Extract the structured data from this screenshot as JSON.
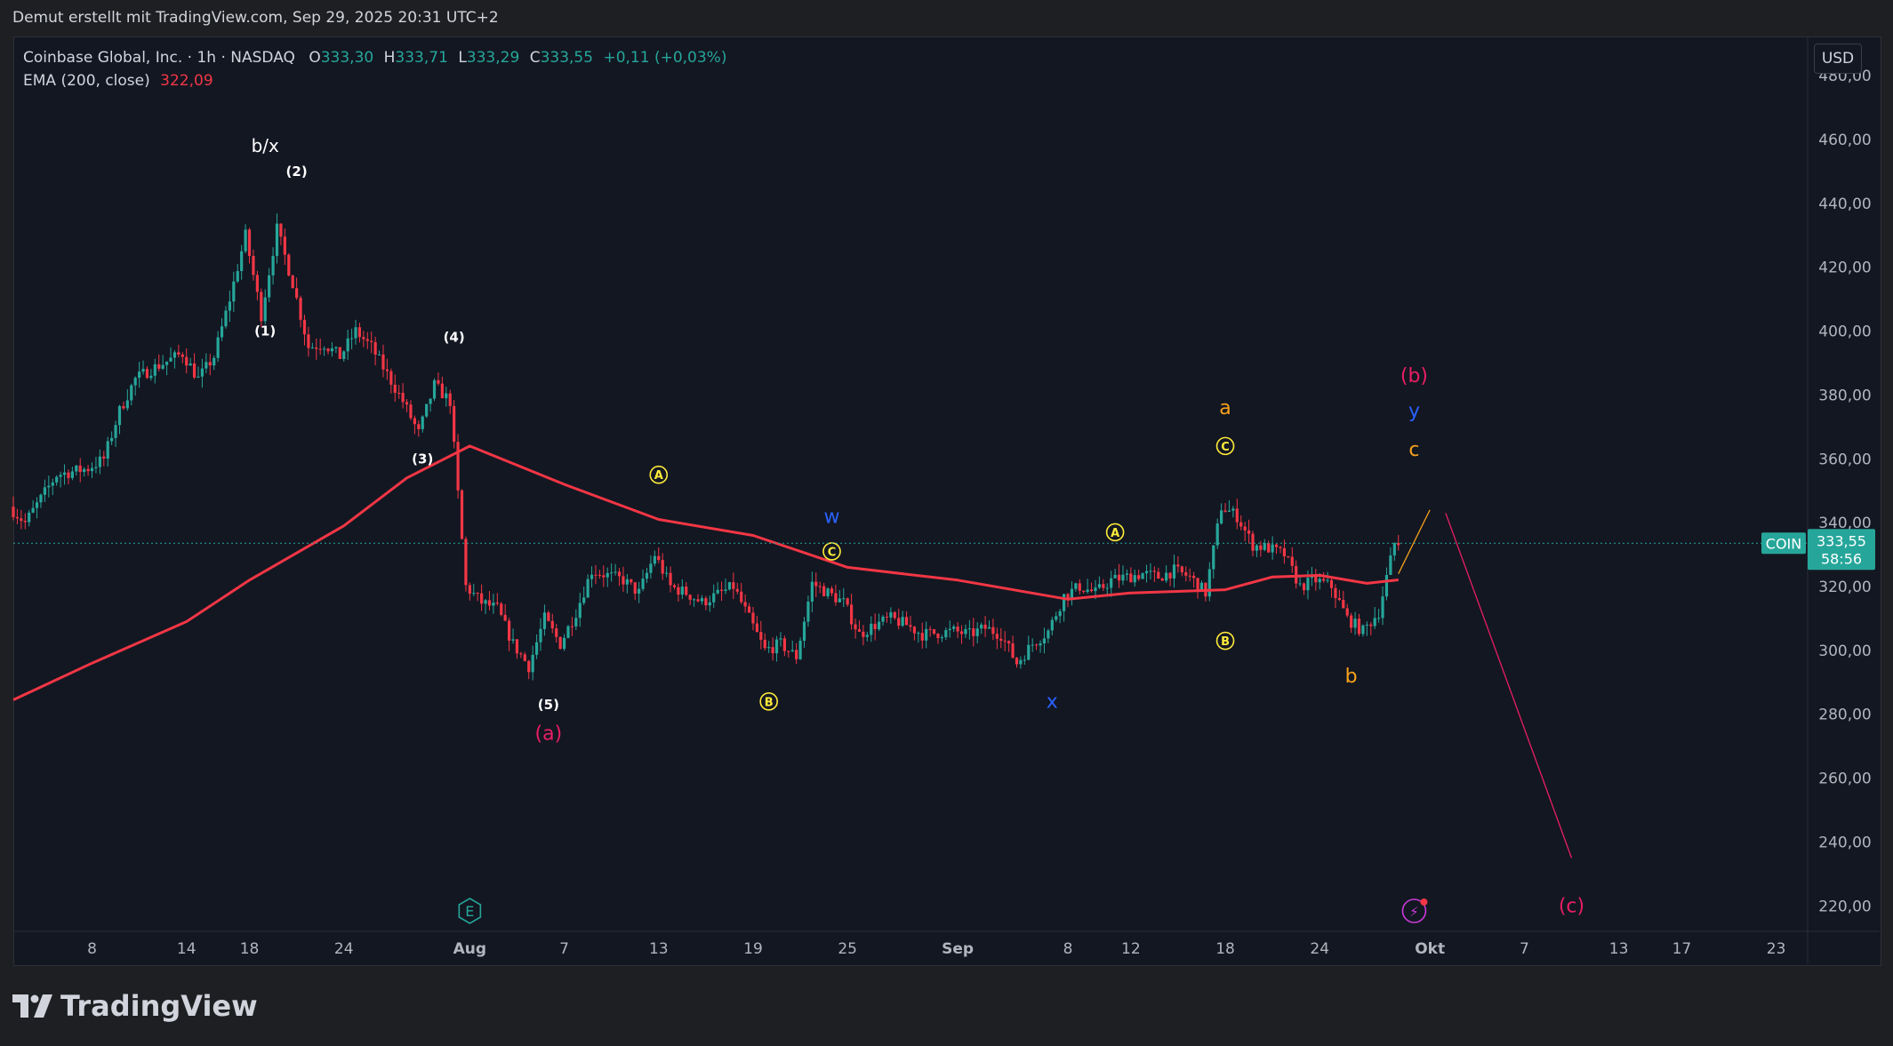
{
  "header": {
    "credit": "Demut erstellt mit TradingView.com, Sep 29, 2025 20:31 UTC+2"
  },
  "legend": {
    "symbol": "Coinbase Global, Inc. · 1h · NASDAQ",
    "o_label": "O",
    "o": "333,30",
    "h_label": "H",
    "h": "333,71",
    "l_label": "L",
    "l": "333,29",
    "c_label": "C",
    "c": "333,55",
    "change": "+0,11 (+0,03%)",
    "ema_label": "EMA (200, close)",
    "ema_value": "322,09"
  },
  "currency_button": "USD",
  "price_tag": {
    "ticker": "COIN",
    "price": "333,55",
    "countdown": "58:56"
  },
  "brand": {
    "name": "TradingView"
  },
  "colors": {
    "up": "#26a69a",
    "down": "#f23645",
    "ema": "#f23645",
    "bg": "#131722",
    "text": "#d1d4dc"
  },
  "chart_data": {
    "type": "candlestick",
    "symbol": "COIN",
    "interval": "1h",
    "ylim": [
      212,
      492
    ],
    "y_ticks": [
      220,
      240,
      260,
      280,
      300,
      320,
      340,
      360,
      380,
      400,
      420,
      440,
      460,
      480
    ],
    "y_tick_labels": [
      "220,00",
      "240,00",
      "260,00",
      "280,00",
      "300,00",
      "320,00",
      "340,00",
      "360,00",
      "380,00",
      "400,00",
      "420,00",
      "440,00",
      "460,00",
      "480,00"
    ],
    "x_range": [
      "2025-07-03",
      "2025-10-25"
    ],
    "x_ticks": [
      {
        "date": "2025-07-08",
        "label": "8"
      },
      {
        "date": "2025-07-14",
        "label": "14"
      },
      {
        "date": "2025-07-18",
        "label": "18"
      },
      {
        "date": "2025-07-24",
        "label": "24"
      },
      {
        "date": "2025-08-01",
        "label": "Aug"
      },
      {
        "date": "2025-08-07",
        "label": "7"
      },
      {
        "date": "2025-08-13",
        "label": "13"
      },
      {
        "date": "2025-08-19",
        "label": "19"
      },
      {
        "date": "2025-08-25",
        "label": "25"
      },
      {
        "date": "2025-09-01",
        "label": "Sep"
      },
      {
        "date": "2025-09-08",
        "label": "8"
      },
      {
        "date": "2025-09-12",
        "label": "12"
      },
      {
        "date": "2025-09-18",
        "label": "18"
      },
      {
        "date": "2025-09-24",
        "label": "24"
      },
      {
        "date": "2025-10-01",
        "label": "Okt"
      },
      {
        "date": "2025-10-07",
        "label": "7"
      },
      {
        "date": "2025-10-13",
        "label": "13"
      },
      {
        "date": "2025-10-17",
        "label": "17"
      },
      {
        "date": "2025-10-23",
        "label": "23"
      }
    ],
    "price_path": [
      [
        "2025-07-03",
        345
      ],
      [
        "2025-07-04",
        340
      ],
      [
        "2025-07-06",
        355
      ],
      [
        "2025-07-08",
        357
      ],
      [
        "2025-07-09",
        360
      ],
      [
        "2025-07-10",
        375
      ],
      [
        "2025-07-11",
        385
      ],
      [
        "2025-07-12",
        388
      ],
      [
        "2025-07-14",
        393
      ],
      [
        "2025-07-15",
        385
      ],
      [
        "2025-07-16",
        392
      ],
      [
        "2025-07-17",
        410
      ],
      [
        "2025-07-18",
        430
      ],
      [
        "2025-07-19",
        405
      ],
      [
        "2025-07-20",
        432
      ],
      [
        "2025-07-21",
        415
      ],
      [
        "2025-07-22",
        395
      ],
      [
        "2025-07-23",
        396
      ],
      [
        "2025-07-24",
        392
      ],
      [
        "2025-07-25",
        400
      ],
      [
        "2025-07-26",
        395
      ],
      [
        "2025-07-28",
        378
      ],
      [
        "2025-07-29",
        368
      ],
      [
        "2025-07-30",
        383
      ],
      [
        "2025-07-31",
        378
      ],
      [
        "2025-08-01",
        320
      ],
      [
        "2025-08-02",
        315
      ],
      [
        "2025-08-03",
        313
      ],
      [
        "2025-08-04",
        302
      ],
      [
        "2025-08-05",
        295
      ],
      [
        "2025-08-06",
        310
      ],
      [
        "2025-08-07",
        302
      ],
      [
        "2025-08-08",
        312
      ],
      [
        "2025-08-09",
        325
      ],
      [
        "2025-08-11",
        322
      ],
      [
        "2025-08-12",
        318
      ],
      [
        "2025-08-13",
        330
      ],
      [
        "2025-08-14",
        320
      ],
      [
        "2025-08-15",
        318
      ],
      [
        "2025-08-16",
        315
      ],
      [
        "2025-08-18",
        320
      ],
      [
        "2025-08-19",
        310
      ],
      [
        "2025-08-20",
        300
      ],
      [
        "2025-08-21",
        302
      ],
      [
        "2025-08-22",
        298
      ],
      [
        "2025-08-23",
        321
      ],
      [
        "2025-08-24",
        318
      ],
      [
        "2025-08-25",
        315
      ],
      [
        "2025-08-26",
        305
      ],
      [
        "2025-08-27",
        308
      ],
      [
        "2025-08-28",
        310
      ],
      [
        "2025-08-29",
        308
      ],
      [
        "2025-08-30",
        305
      ],
      [
        "2025-09-01",
        306
      ],
      [
        "2025-09-02",
        305
      ],
      [
        "2025-09-03",
        307
      ],
      [
        "2025-09-04",
        305
      ],
      [
        "2025-09-05",
        296
      ],
      [
        "2025-09-06",
        302
      ],
      [
        "2025-09-07",
        306
      ],
      [
        "2025-09-08",
        317
      ],
      [
        "2025-09-09",
        320
      ],
      [
        "2025-09-10",
        318
      ],
      [
        "2025-09-11",
        322
      ],
      [
        "2025-09-12",
        323
      ],
      [
        "2025-09-13",
        324
      ],
      [
        "2025-09-14",
        323
      ],
      [
        "2025-09-15",
        325
      ],
      [
        "2025-09-16",
        323
      ],
      [
        "2025-09-17",
        318
      ],
      [
        "2025-09-18",
        345
      ],
      [
        "2025-09-19",
        342
      ],
      [
        "2025-09-20",
        333
      ],
      [
        "2025-09-21",
        332
      ],
      [
        "2025-09-22",
        330
      ],
      [
        "2025-09-23",
        320
      ],
      [
        "2025-09-24",
        322
      ],
      [
        "2025-09-25",
        320
      ],
      [
        "2025-09-26",
        310
      ],
      [
        "2025-09-27",
        306
      ],
      [
        "2025-09-28",
        312
      ],
      [
        "2025-09-29",
        333.55
      ]
    ],
    "series": [
      {
        "name": "EMA (200, close)",
        "color": "#f23645",
        "type": "line",
        "values": [
          [
            "2025-07-03",
            284.5
          ],
          [
            "2025-07-08",
            296
          ],
          [
            "2025-07-14",
            309
          ],
          [
            "2025-07-18",
            322
          ],
          [
            "2025-07-24",
            339
          ],
          [
            "2025-07-28",
            354
          ],
          [
            "2025-08-01",
            364
          ],
          [
            "2025-08-07",
            352
          ],
          [
            "2025-08-13",
            341
          ],
          [
            "2025-08-19",
            336
          ],
          [
            "2025-08-25",
            326
          ],
          [
            "2025-09-01",
            322
          ],
          [
            "2025-09-08",
            316
          ],
          [
            "2025-09-12",
            318
          ],
          [
            "2025-09-18",
            319
          ],
          [
            "2025-09-21",
            323
          ],
          [
            "2025-09-24",
            323.5
          ],
          [
            "2025-09-27",
            321
          ],
          [
            "2025-09-29",
            322.09
          ]
        ]
      }
    ],
    "annotations": [
      {
        "text": "b/x",
        "date": "2025-07-19",
        "price": 458,
        "color": "#ffffff"
      },
      {
        "text": "(2)",
        "date": "2025-07-21",
        "price": 450,
        "color": "#ffffff"
      },
      {
        "text": "(1)",
        "date": "2025-07-19",
        "price": 400,
        "color": "#ffffff"
      },
      {
        "text": "(4)",
        "date": "2025-07-31",
        "price": 398,
        "color": "#ffffff"
      },
      {
        "text": "(3)",
        "date": "2025-07-29",
        "price": 360,
        "color": "#ffffff"
      },
      {
        "text": "(5)",
        "date": "2025-08-06",
        "price": 283,
        "color": "#ffffff"
      },
      {
        "text": "(a)",
        "date": "2025-08-06",
        "price": 274,
        "color": "#e91e63"
      },
      {
        "text": "A",
        "date": "2025-08-13",
        "price": 355,
        "color": "#ffeb3b",
        "circled": true
      },
      {
        "text": "B",
        "date": "2025-08-20",
        "price": 284,
        "color": "#ffeb3b",
        "circled": true
      },
      {
        "text": "C",
        "date": "2025-08-24",
        "price": 331,
        "color": "#ffeb3b",
        "circled": true
      },
      {
        "text": "w",
        "date": "2025-08-24",
        "price": 342,
        "color": "#2962ff"
      },
      {
        "text": "x",
        "date": "2025-09-07",
        "price": 284,
        "color": "#2962ff"
      },
      {
        "text": "A",
        "date": "2025-09-11",
        "price": 337,
        "color": "#ffeb3b",
        "circled": true
      },
      {
        "text": "B",
        "date": "2025-09-18",
        "price": 303,
        "color": "#ffeb3b",
        "circled": true
      },
      {
        "text": "C",
        "date": "2025-09-18",
        "price": 364,
        "color": "#ffeb3b",
        "circled": true
      },
      {
        "text": "a",
        "date": "2025-09-18",
        "price": 376,
        "color": "#f7a21b"
      },
      {
        "text": "b",
        "date": "2025-09-26",
        "price": 292,
        "color": "#f7a21b"
      },
      {
        "text": "c",
        "date": "2025-09-30",
        "price": 363,
        "color": "#f7a21b"
      },
      {
        "text": "y",
        "date": "2025-09-30",
        "price": 375,
        "color": "#2962ff"
      },
      {
        "text": "(b)",
        "date": "2025-09-30",
        "price": 386,
        "color": "#e91e63"
      },
      {
        "text": "(c)",
        "date": "2025-10-10",
        "price": 220,
        "color": "#e91e63"
      }
    ],
    "projection_lines": [
      {
        "color": "#f7a21b",
        "from": [
          "2025-09-29",
          324
        ],
        "to": [
          "2025-10-01",
          344
        ]
      },
      {
        "color": "#e91e63",
        "from": [
          "2025-10-02",
          343
        ],
        "to": [
          "2025-10-10",
          235
        ]
      }
    ],
    "markers": [
      {
        "type": "earnings",
        "label": "E",
        "date": "2025-08-01"
      },
      {
        "type": "dividend-event",
        "label": "⚡",
        "date": "2025-09-30"
      }
    ],
    "current_price": 333.55,
    "grid": false,
    "legend": "top-left"
  }
}
